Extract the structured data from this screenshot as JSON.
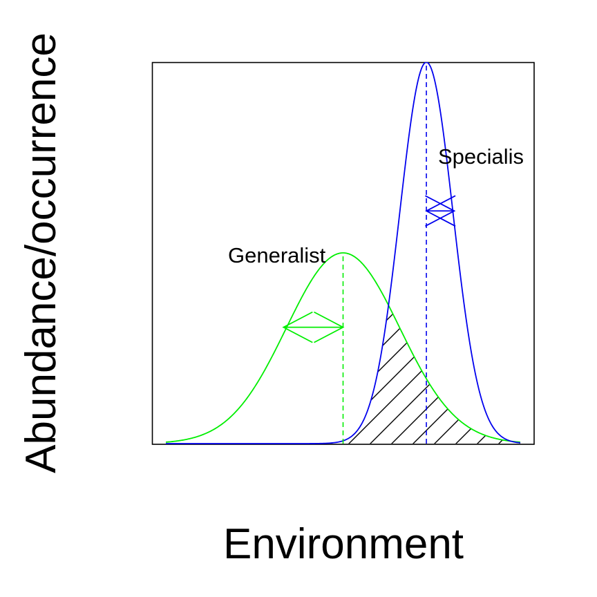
{
  "xlabel": "Environment",
  "ylabel": "Abundance/occurrence",
  "colors": {
    "generalist": "#00ee00",
    "specialist": "#0000ee",
    "overlap_hatch": "#000000",
    "frame": "#000000"
  },
  "curves": {
    "generalist": {
      "label": "Generalist",
      "mean": 0.5,
      "sd": 0.16,
      "peak": 0.5,
      "line": "solid",
      "mean_marker": "dashed"
    },
    "specialist": {
      "label": "Specialis",
      "mean": 0.735,
      "sd": 0.075,
      "peak": 1.0,
      "line": "solid",
      "mean_marker": "dashed"
    }
  },
  "overlap_region": {
    "pattern": "diagonal-hatch"
  },
  "axes": {
    "ticks": false
  }
}
